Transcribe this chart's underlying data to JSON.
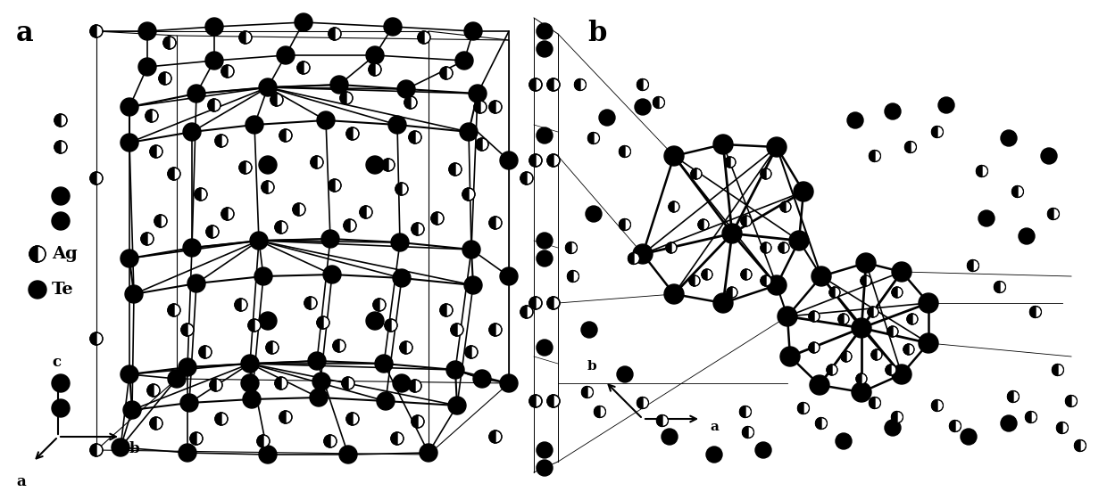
{
  "figure_width": 12.4,
  "figure_height": 5.61,
  "dpi": 100,
  "background_color": "#ffffff",
  "panel_a_label": "a",
  "panel_b_label": "b",
  "ag_label": "Ag",
  "te_label": "Te"
}
